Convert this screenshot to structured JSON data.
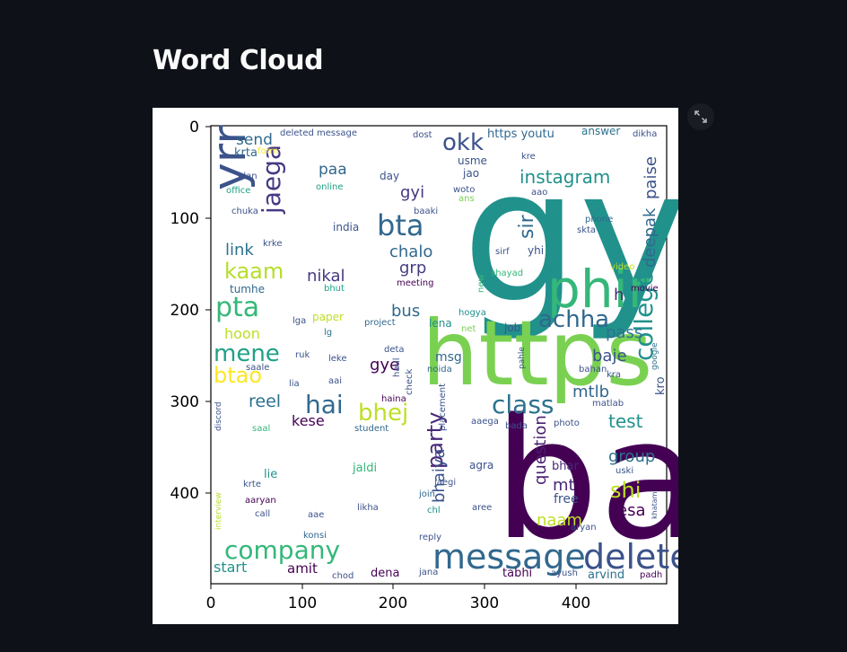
{
  "page": {
    "title": "Word Cloud",
    "background": "#0e1117"
  },
  "toolbar": {
    "fullscreen_icon": "expand-icon"
  },
  "chart_data": {
    "type": "wordcloud",
    "title": "",
    "xlabel": "",
    "ylabel": "",
    "xlim": [
      0,
      500
    ],
    "ylim": [
      500,
      0
    ],
    "x_ticks": [
      "0",
      "100",
      "200",
      "300",
      "400"
    ],
    "y_ticks": [
      "0",
      "100",
      "200",
      "300",
      "400"
    ],
    "colormap": "viridis",
    "words": [
      "gya",
      "baat",
      "https",
      "phir",
      "message",
      "deleted",
      "company",
      "yrr",
      "bta",
      "jaega",
      "okk",
      "instagram",
      "sir",
      "college",
      "class",
      "hai",
      "bhej",
      "party",
      "achha",
      "kaam",
      "pta",
      "mene",
      "btao",
      "shi",
      "test",
      "group",
      "question",
      "bhaiya",
      "naam",
      "mt",
      "esa",
      "paise",
      "deepak",
      "pass",
      "baje",
      "mtlb",
      "kro",
      "reel",
      "kese",
      "send",
      "paa",
      "gyi",
      "chalo",
      "grp",
      "nikal",
      "bus",
      "gye",
      "msg",
      "link",
      "hoon",
      "tumhe",
      "h",
      "amit",
      "start",
      "dena",
      "tabhi",
      "arvind",
      "lie",
      "jaldi",
      "agra",
      "bhar",
      "free",
      "krta",
      "day",
      "jao",
      "usme",
      "yhi",
      "kre",
      "india",
      "phone",
      "skta",
      "video",
      "movie",
      "meeting",
      "bhut",
      "paper",
      "project",
      "lena",
      "hogya",
      "job",
      "lga",
      "lg",
      "net",
      "deta",
      "ruk",
      "leke",
      "lia",
      "aai",
      "check",
      "noida",
      "haina",
      "aaega",
      "bada",
      "photo",
      "matlab",
      "haul",
      "placement",
      "student",
      "jaegi",
      "join",
      "chl",
      "aree",
      "likha",
      "call",
      "aae",
      "konsi",
      "reply",
      "jana",
      "chod",
      "ayush",
      "padh",
      "khatam",
      "aryan",
      "uski",
      "krte",
      "aaryan",
      "interview",
      "discord",
      "saal",
      "saale",
      "bahan",
      "kra",
      "google",
      "pahle",
      "shayad",
      "sirf",
      "new",
      "baaki",
      "woto",
      "ans",
      "aao",
      "online",
      "chuka",
      "office",
      "plan",
      "form",
      "dost",
      "answer",
      "dikha",
      "https youtu",
      "deleted message",
      "krke",
      "puch"
    ]
  }
}
